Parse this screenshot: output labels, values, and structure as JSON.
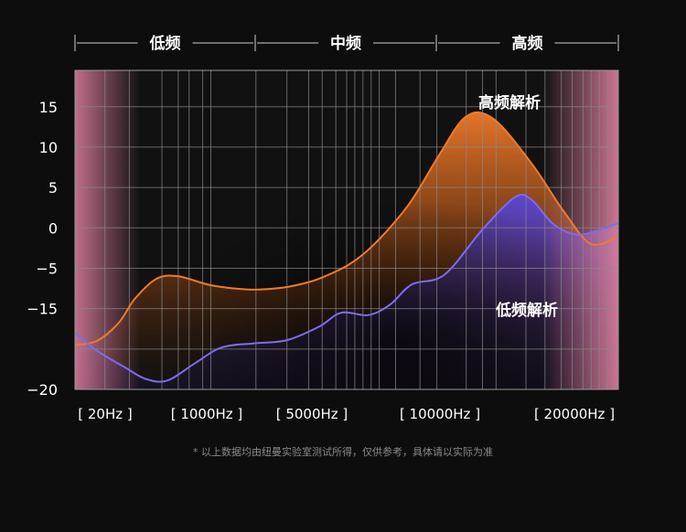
{
  "bands": [
    "低频",
    "中频",
    "高频"
  ],
  "footnote": "* 以上数据均由纽曼实验室测试所得，仅供参考，具体请以实际为准",
  "annotations": {
    "high": "高频解析",
    "low": "低频解析"
  },
  "colors": {
    "orange": "#f07a2a",
    "purple": "#7b6cf0",
    "pink": "#e07fa0",
    "grid": "#8a8a8a",
    "background": "#0d0d0d"
  },
  "chart_data": {
    "type": "area",
    "title": "",
    "xlabel": "",
    "ylabel": "",
    "y_ticks": [
      "15",
      "10",
      "5",
      "0",
      "−5",
      "−15",
      "−20"
    ],
    "ylim": [
      -20,
      20
    ],
    "x_tick_labels": [
      "[ 20Hz ]",
      "[ 1000Hz ]",
      "[ 5000Hz ]",
      "[ 10000Hz ]",
      "[ 20000Hz ]"
    ],
    "grid": true,
    "legend": "none",
    "series": [
      {
        "color": "#f07a2a",
        "points": [
          [
            0,
            -14.5
          ],
          [
            0.04,
            -14.0
          ],
          [
            0.08,
            -11.8
          ],
          [
            0.11,
            -8.8
          ],
          [
            0.15,
            -6.3
          ],
          [
            0.19,
            -6.0
          ],
          [
            0.25,
            -7.1
          ],
          [
            0.31,
            -7.6
          ],
          [
            0.35,
            -7.6
          ],
          [
            0.4,
            -7.2
          ],
          [
            0.46,
            -6.0
          ],
          [
            0.53,
            -3.3
          ],
          [
            0.61,
            2.5
          ],
          [
            0.67,
            9.0
          ],
          [
            0.72,
            13.8
          ],
          [
            0.77,
            13.5
          ],
          [
            0.84,
            8.0
          ],
          [
            0.9,
            2.0
          ],
          [
            0.95,
            -2.0
          ],
          [
            1.0,
            -1.0
          ]
        ]
      },
      {
        "color": "#7b6cf0",
        "points": [
          [
            0,
            -13.0
          ],
          [
            0.04,
            -15.2
          ],
          [
            0.09,
            -17.2
          ],
          [
            0.13,
            -18.7
          ],
          [
            0.17,
            -18.9
          ],
          [
            0.22,
            -16.8
          ],
          [
            0.27,
            -14.8
          ],
          [
            0.33,
            -14.3
          ],
          [
            0.39,
            -13.9
          ],
          [
            0.45,
            -12.2
          ],
          [
            0.49,
            -10.5
          ],
          [
            0.54,
            -10.8
          ],
          [
            0.58,
            -9.5
          ],
          [
            0.62,
            -7.0
          ],
          [
            0.68,
            -5.8
          ],
          [
            0.75,
            -0.2
          ],
          [
            0.81,
            3.8
          ],
          [
            0.84,
            3.5
          ],
          [
            0.88,
            0.5
          ],
          [
            0.92,
            -0.8
          ],
          [
            0.96,
            -0.4
          ],
          [
            1.0,
            0.6
          ]
        ]
      }
    ]
  }
}
